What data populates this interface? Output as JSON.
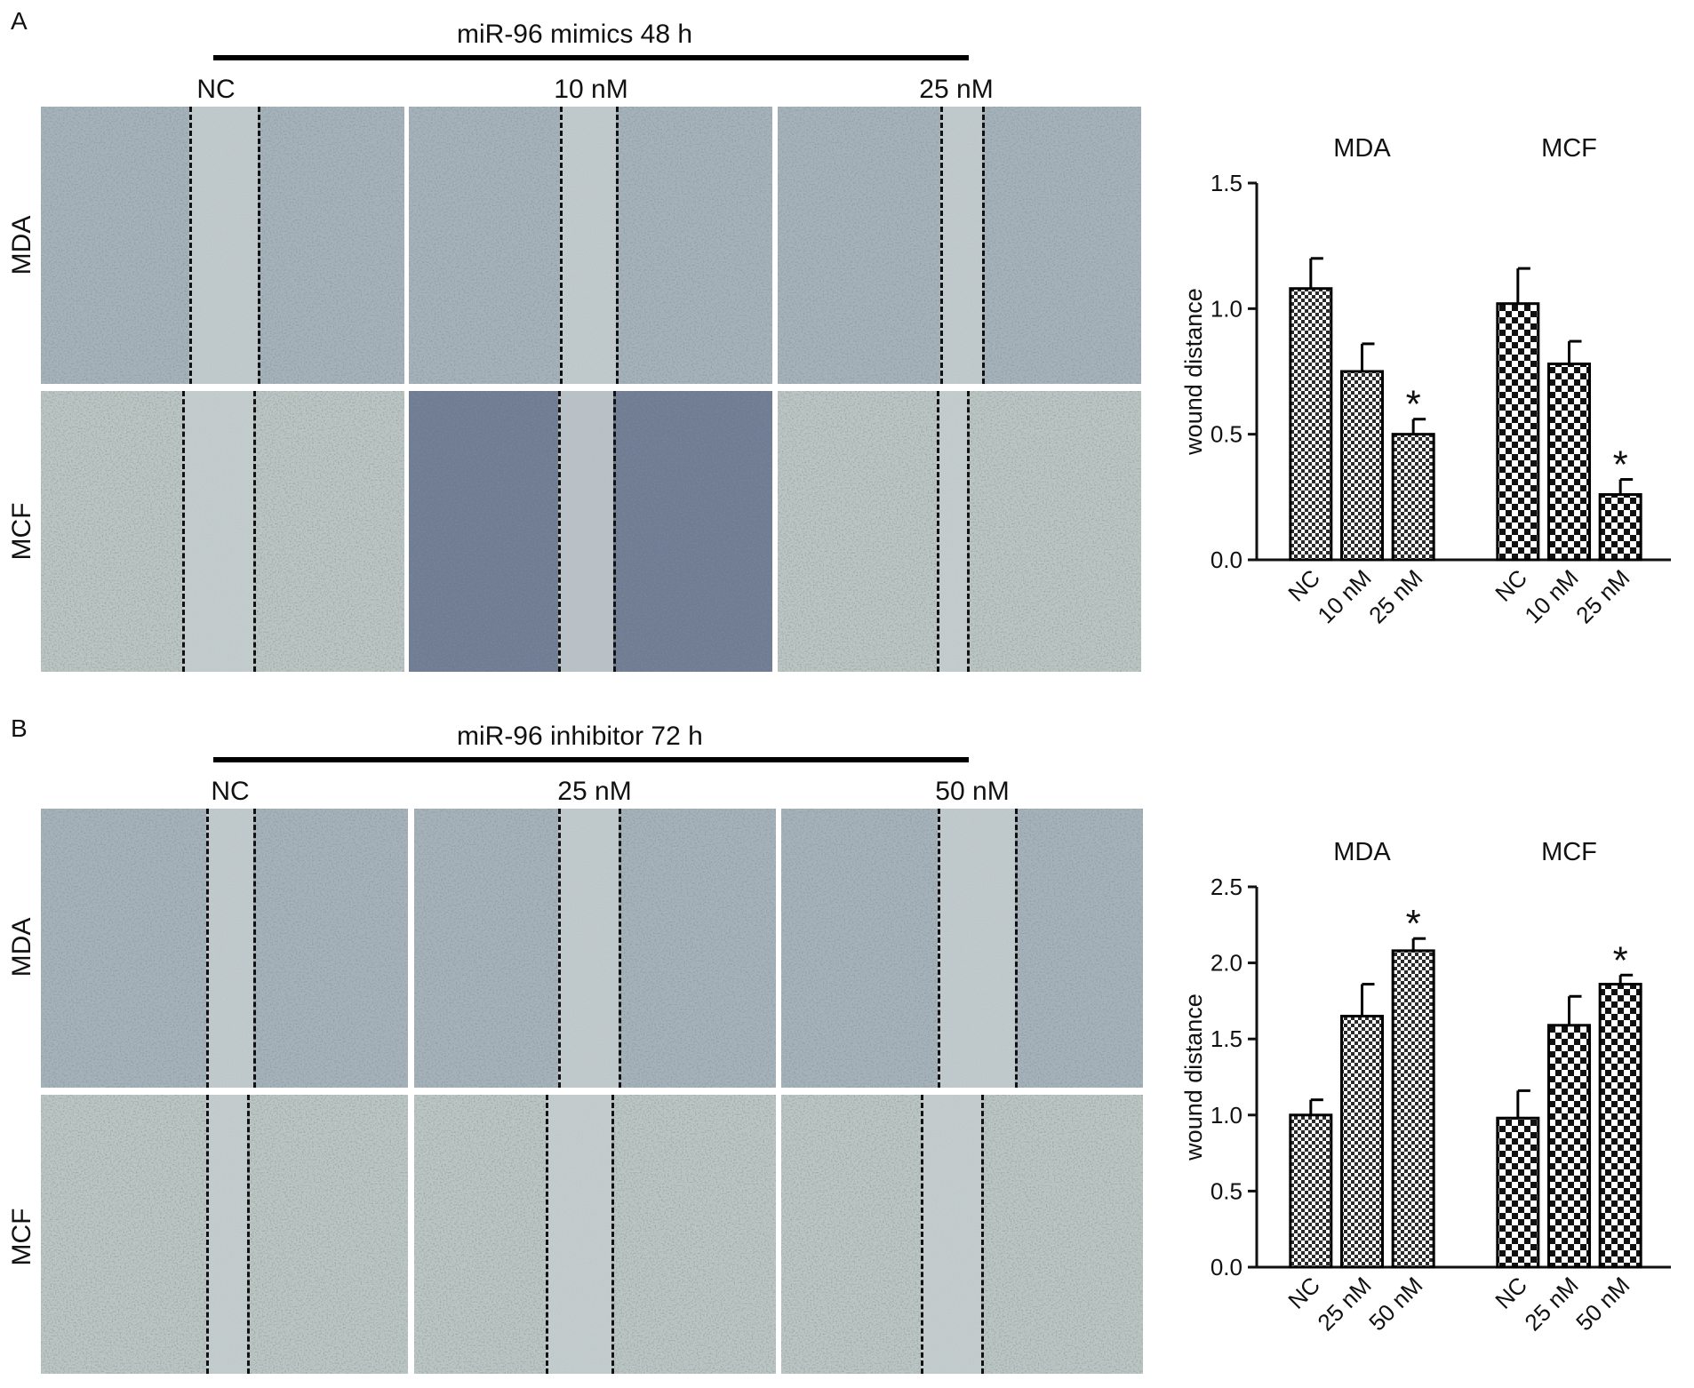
{
  "panels": [
    {
      "letter": "A",
      "condition": "miR-96 mimics 48 h",
      "columns": [
        "NC",
        "10 nM",
        "25 nM"
      ],
      "rows": [
        "MDA",
        "MCF"
      ]
    },
    {
      "letter": "B",
      "condition": "miR-96 inhibitor 72 h",
      "columns": [
        "NC",
        "25 nM",
        "50 nM"
      ],
      "rows": [
        "MDA",
        "MCF"
      ]
    }
  ],
  "colors": {
    "photo_mda": "#a6b3bb",
    "photo_mcf": "#bcc6c3",
    "photo_dark": "#6f7c93",
    "wound_gap": "#c4cdcf",
    "bar_outline": "#000000"
  },
  "chart_data": [
    {
      "type": "bar",
      "groups": [
        "MDA",
        "MCF"
      ],
      "categories": [
        "NC",
        "10 nM",
        "25 nM"
      ],
      "series": [
        {
          "name": "MDA",
          "values": [
            1.08,
            0.75,
            0.5
          ],
          "errors": [
            0.12,
            0.11,
            0.06
          ],
          "significant": [
            false,
            false,
            true
          ]
        },
        {
          "name": "MCF",
          "values": [
            1.02,
            0.78,
            0.26
          ],
          "errors": [
            0.14,
            0.09,
            0.06
          ],
          "significant": [
            false,
            false,
            true
          ]
        }
      ],
      "ylabel": "wound distance",
      "ylim": [
        0,
        1.5
      ],
      "yticks": [
        "0.0",
        "0.5",
        "1.0",
        "1.5"
      ],
      "significance_marker": "*",
      "grid": false
    },
    {
      "type": "bar",
      "groups": [
        "MDA",
        "MCF"
      ],
      "categories": [
        "NC",
        "25 nM",
        "50 nM"
      ],
      "series": [
        {
          "name": "MDA",
          "values": [
            1.0,
            1.65,
            2.08
          ],
          "errors": [
            0.1,
            0.21,
            0.08
          ],
          "significant": [
            false,
            false,
            true
          ]
        },
        {
          "name": "MCF",
          "values": [
            0.98,
            1.59,
            1.86
          ],
          "errors": [
            0.18,
            0.19,
            0.06
          ],
          "significant": [
            false,
            false,
            true
          ]
        }
      ],
      "ylabel": "wound distance",
      "ylim": [
        0,
        2.5
      ],
      "yticks": [
        "0.0",
        "0.5",
        "1.0",
        "1.5",
        "2.0",
        "2.5"
      ],
      "significance_marker": "*",
      "grid": false
    }
  ]
}
